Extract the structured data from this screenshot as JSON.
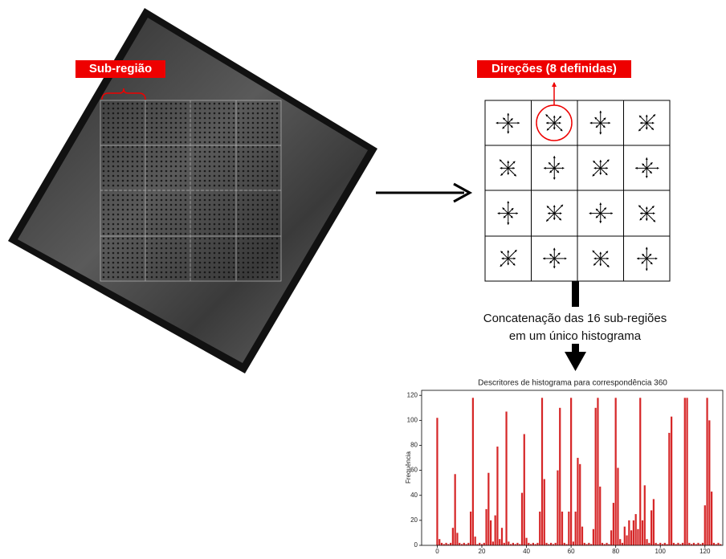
{
  "labels": {
    "subregion": "Sub-região",
    "directions": "Direções (8 definidas)",
    "caption": [
      "Concatenação das 16 sub-regiões",
      "em um único histograma"
    ]
  },
  "chart_data": {
    "type": "bar",
    "title": "Descritores de histograma para correspondência 360",
    "y_label": "Frequência",
    "color": "#d62728",
    "x": [
      0,
      1,
      2,
      3,
      4,
      5,
      6,
      7,
      8,
      9,
      10,
      11,
      12,
      13,
      14,
      15,
      16,
      17,
      18,
      19,
      20,
      21,
      22,
      23,
      24,
      25,
      26,
      27,
      28,
      29,
      30,
      31,
      32,
      33,
      34,
      35,
      36,
      37,
      38,
      39,
      40,
      41,
      42,
      43,
      44,
      45,
      46,
      47,
      48,
      49,
      50,
      51,
      52,
      53,
      54,
      55,
      56,
      57,
      58,
      59,
      60,
      61,
      62,
      63,
      64,
      65,
      66,
      67,
      68,
      69,
      70,
      71,
      72,
      73,
      74,
      75,
      76,
      77,
      78,
      79,
      80,
      81,
      82,
      83,
      84,
      85,
      86,
      87,
      88,
      89,
      90,
      91,
      92,
      93,
      94,
      95,
      96,
      97,
      98,
      99,
      100,
      101,
      102,
      103,
      104,
      105,
      106,
      107,
      108,
      109,
      110,
      111,
      112,
      113,
      114,
      115,
      116,
      117,
      118,
      119,
      120,
      121,
      122,
      123,
      124,
      125,
      126,
      127
    ],
    "values": [
      102,
      5,
      2,
      1,
      2,
      1,
      2,
      14,
      57,
      10,
      2,
      1,
      2,
      1,
      2,
      27,
      118,
      7,
      1,
      2,
      1,
      2,
      29,
      58,
      20,
      3,
      24,
      79,
      5,
      14,
      2,
      107,
      3,
      1,
      2,
      1,
      2,
      1,
      42,
      89,
      6,
      2,
      1,
      2,
      1,
      2,
      27,
      118,
      53,
      2,
      1,
      2,
      1,
      2,
      60,
      110,
      27,
      2,
      1,
      27,
      118,
      3,
      27,
      70,
      65,
      15,
      2,
      1,
      2,
      1,
      13,
      110,
      118,
      47,
      2,
      1,
      2,
      1,
      12,
      34,
      118,
      62,
      5,
      2,
      15,
      8,
      20,
      12,
      20,
      25,
      13,
      118,
      20,
      48,
      5,
      2,
      28,
      37,
      2,
      1,
      2,
      1,
      2,
      1,
      90,
      103,
      2,
      1,
      2,
      1,
      2,
      118,
      118,
      2,
      1,
      2,
      1,
      2,
      1,
      2,
      32,
      118,
      100,
      43,
      2,
      1,
      2,
      1
    ],
    "xlim": [
      -7,
      128
    ],
    "ylim": [
      0,
      124
    ],
    "xticks": [
      0,
      20,
      40,
      60,
      80,
      100,
      120
    ],
    "yticks": [
      0,
      20,
      40,
      60,
      80,
      100,
      120
    ]
  }
}
